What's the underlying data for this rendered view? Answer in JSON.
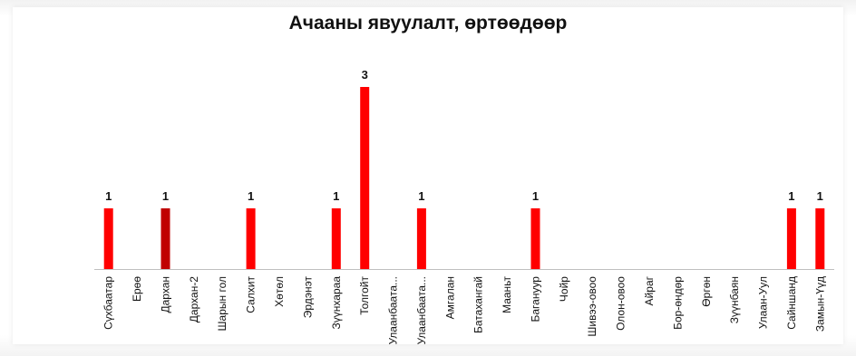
{
  "chart_data": {
    "type": "bar",
    "title": "Ачааны явуулалт, өртөөдөөр",
    "categories": [
      "Сүхбаатар",
      "Ерөө",
      "Дархан",
      "Дархан-2",
      "Шарын гол",
      "Салхит",
      "Хөтөл",
      "Эрдэнэт",
      "Зүүнхараа",
      "Толгойт",
      "Улаанбаата...",
      "Улаанбаата...",
      "Амгалан",
      "Батахангай",
      "Мааньт",
      "Багануур",
      "Чойр",
      "Шивээ-овоо",
      "Олон-овоо",
      "Айраг",
      "Бор-өндөр",
      "Өргөн",
      "Зүүнбаян",
      "Улаан-Уул",
      "Сайншанд",
      "Замын-Үүд"
    ],
    "values": [
      1,
      0,
      1,
      0,
      0,
      1,
      0,
      0,
      1,
      3,
      0,
      1,
      0,
      0,
      0,
      1,
      0,
      0,
      0,
      0,
      0,
      0,
      0,
      0,
      1,
      1
    ],
    "data_labels": [
      "1",
      "",
      "1",
      "",
      "",
      "1",
      "",
      "",
      "1",
      "3",
      "",
      "1",
      "",
      "",
      "",
      "1",
      "",
      "",
      "",
      "",
      "",
      "",
      "",
      "",
      "1",
      "1"
    ],
    "ylim": [
      0,
      3
    ],
    "grid": false,
    "legend": "none",
    "colors": {
      "bar": "#ff0000",
      "bar_highlight": "#c00000",
      "axis": "#bfbfbf",
      "text": "#111111"
    },
    "highlight_index": 2
  }
}
